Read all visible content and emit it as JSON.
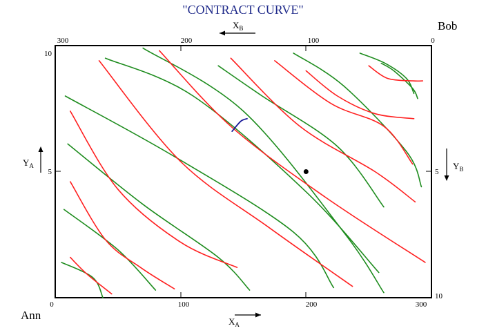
{
  "title": "\"CONTRACT CURVE\"",
  "agents": {
    "ann": "Ann",
    "bob": "Bob"
  },
  "axes": {
    "x_a": {
      "main": "X",
      "sub": "A",
      "ticks": [
        "0",
        "100",
        "200",
        "300"
      ]
    },
    "x_b": {
      "main": "X",
      "sub": "B",
      "ticks": [
        "300",
        "200",
        "100",
        "0"
      ]
    },
    "y_a": {
      "main": "Y",
      "sub": "A",
      "ticks": [
        "10",
        "5"
      ]
    },
    "y_b": {
      "main": "Y",
      "sub": "B",
      "ticks": [
        "5",
        "10"
      ]
    }
  },
  "colors": {
    "ann_indifference": "#ff2020",
    "bob_indifference": "#1e8c1e",
    "tangency_arc": "#1a1a9a",
    "box": "#000000",
    "title": "#1f2a8a"
  },
  "chart_data": {
    "type": "edgeworth-box",
    "x_range": [
      0,
      300
    ],
    "y_range": [
      0,
      10
    ],
    "ann_curves": [
      [
        [
          12,
          1.6
        ],
        [
          25,
          0.95
        ],
        [
          45,
          0.15
        ]
      ],
      [
        [
          12,
          4.6
        ],
        [
          40,
          2.3
        ],
        [
          68,
          1.2
        ],
        [
          95,
          0.35
        ]
      ],
      [
        [
          12,
          7.4
        ],
        [
          50,
          4.3
        ],
        [
          100,
          2.2
        ],
        [
          145,
          1.2
        ]
      ],
      [
        [
          35,
          9.4
        ],
        [
          100,
          5.4
        ],
        [
          170,
          2.8
        ],
        [
          237,
          0.45
        ]
      ],
      [
        [
          83,
          9.8
        ],
        [
          140,
          6.8
        ],
        [
          215,
          4.0
        ],
        [
          295,
          1.4
        ]
      ],
      [
        [
          140,
          9.5
        ],
        [
          195,
          6.8
        ],
        [
          255,
          5.0
        ],
        [
          287,
          3.8
        ]
      ],
      [
        [
          175,
          9.4
        ],
        [
          220,
          7.7
        ],
        [
          262,
          6.8
        ],
        [
          285,
          5.3
        ]
      ],
      [
        [
          200,
          9.0
        ],
        [
          225,
          8.0
        ],
        [
          255,
          7.3
        ],
        [
          286,
          7.1
        ]
      ],
      [
        [
          250,
          9.2
        ],
        [
          265,
          8.7
        ],
        [
          285,
          8.6
        ],
        [
          293,
          8.6
        ]
      ]
    ],
    "bob_curves": [
      [
        [
          5,
          1.4
        ],
        [
          30,
          0.8
        ],
        [
          38,
          0.0
        ]
      ],
      [
        [
          7,
          3.5
        ],
        [
          50,
          1.9
        ],
        [
          80,
          0.3
        ]
      ],
      [
        [
          10,
          6.1
        ],
        [
          70,
          3.7
        ],
        [
          130,
          1.6
        ],
        [
          155,
          0.3
        ]
      ],
      [
        [
          8,
          8.0
        ],
        [
          95,
          5.6
        ],
        [
          190,
          2.6
        ],
        [
          222,
          0.4
        ]
      ],
      [
        [
          40,
          9.5
        ],
        [
          110,
          8.0
        ],
        [
          200,
          4.2
        ],
        [
          258,
          1.0
        ]
      ],
      [
        [
          70,
          9.9
        ],
        [
          150,
          7.4
        ],
        [
          230,
          2.6
        ],
        [
          262,
          0.2
        ]
      ],
      [
        [
          130,
          9.2
        ],
        [
          165,
          8.0
        ],
        [
          225,
          6.0
        ],
        [
          262,
          3.6
        ]
      ],
      [
        [
          190,
          9.7
        ],
        [
          230,
          8.4
        ],
        [
          280,
          5.8
        ],
        [
          292,
          4.4
        ]
      ],
      [
        [
          243,
          9.7
        ],
        [
          263,
          9.3
        ],
        [
          280,
          8.7
        ],
        [
          286,
          8.1
        ]
      ],
      [
        [
          260,
          9.3
        ],
        [
          270,
          9.0
        ],
        [
          285,
          8.3
        ],
        [
          289,
          7.9
        ]
      ]
    ],
    "tangency_arc": [
      [
        141,
        6.6
      ],
      [
        148,
        7.0
      ],
      [
        153,
        7.1
      ]
    ],
    "endowment_point": [
      200,
      5.0
    ]
  }
}
